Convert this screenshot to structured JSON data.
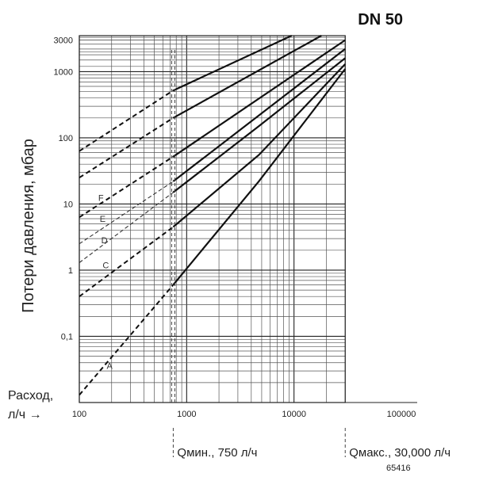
{
  "chart_data": {
    "type": "line",
    "title": "DN 50",
    "ylabel": "Потери давления, мбар",
    "xlabel_line1": "Расход,",
    "xlabel_line2": "л/ч →",
    "x_scale": "log",
    "y_scale": "log",
    "xlim": [
      100,
      100000
    ],
    "ylim": [
      0.01,
      3500
    ],
    "x_ticks": [
      {
        "value": 100,
        "label": "100"
      },
      {
        "value": 1000,
        "label": "1000"
      },
      {
        "value": 10000,
        "label": "10000"
      },
      {
        "value": 100000,
        "label": "100000"
      }
    ],
    "y_ticks": [
      {
        "value": 0.1,
        "label": "0,1"
      },
      {
        "value": 1,
        "label": "1"
      },
      {
        "value": 10,
        "label": "10"
      },
      {
        "value": 100,
        "label": "100"
      },
      {
        "value": 1000,
        "label": "1000"
      },
      {
        "value": 3000,
        "label": "3000"
      }
    ],
    "grid": true,
    "plot_x_max": 30000,
    "series": [
      {
        "name": "A",
        "label_at": [
          180,
          0.036
        ],
        "dashed": [
          [
            100,
            0.013
          ],
          [
            750,
            0.6
          ]
        ],
        "solid": [
          [
            750,
            0.6
          ],
          [
            4700,
            22
          ],
          [
            30000,
            1100
          ]
        ]
      },
      {
        "name": "C",
        "label_at": [
          165,
          1.2
        ],
        "dashed": [
          [
            100,
            0.4
          ],
          [
            750,
            4.5
          ]
        ],
        "solid": [
          [
            750,
            4.5
          ],
          [
            4700,
            55
          ],
          [
            30000,
            1300
          ]
        ]
      },
      {
        "name": "D",
        "label_at": [
          160,
          2.85
        ],
        "dashed": [
          [
            100,
            1.3
          ],
          [
            750,
            15
          ]
        ],
        "solid": [
          [
            750,
            15
          ],
          [
            4700,
            150
          ],
          [
            30000,
            1600
          ]
        ]
      },
      {
        "name": "E",
        "label_at": [
          155,
          6.0
        ],
        "dashed": [
          [
            100,
            2.5
          ],
          [
            750,
            22
          ]
        ],
        "solid": [
          [
            750,
            22
          ],
          [
            30000,
            2200
          ]
        ]
      },
      {
        "name": "F",
        "label_at": [
          150,
          12.5
        ],
        "dashed": [
          [
            100,
            6.3
          ],
          [
            750,
            52
          ]
        ],
        "solid": [
          [
            750,
            52
          ],
          [
            30000,
            3000
          ]
        ]
      },
      {
        "name": "",
        "dashed": [
          [
            100,
            25
          ],
          [
            750,
            200
          ]
        ],
        "solid": [
          [
            750,
            200
          ],
          [
            18000,
            3500
          ]
        ]
      },
      {
        "name": "",
        "dashed": [
          [
            100,
            63
          ],
          [
            750,
            520
          ]
        ],
        "solid": [
          [
            750,
            520
          ],
          [
            9500,
            3500
          ]
        ]
      }
    ],
    "markers": [
      {
        "x": 750,
        "label": "Qмин., 750 л/ч"
      },
      {
        "x": 30000,
        "label": "Qмакс., 30,000 л/ч"
      }
    ],
    "figure_number": "65416"
  }
}
